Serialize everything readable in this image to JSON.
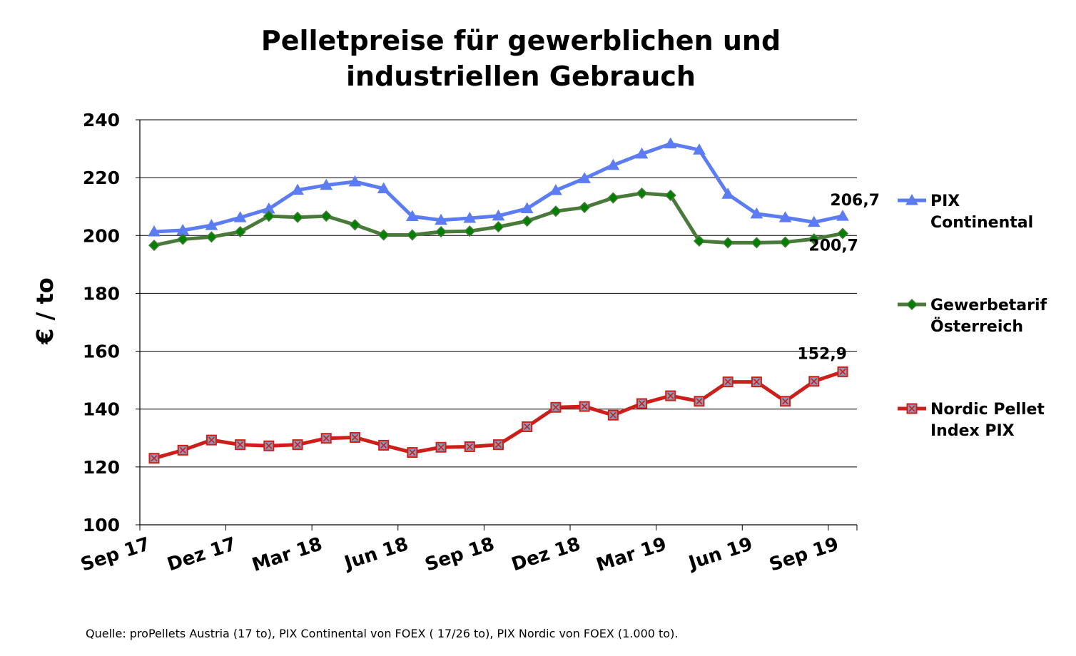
{
  "chart_data": {
    "type": "line",
    "title": [
      "Pelletpreise für gewerblichen und",
      "industriellen Gebrauch"
    ],
    "ylabel": "€ / to",
    "xlabel": "",
    "ylim": [
      100,
      240
    ],
    "yticks": [
      "100",
      "120",
      "140",
      "160",
      "180",
      "200",
      "220",
      "240"
    ],
    "grid": true,
    "legend_position": "right",
    "x_tick_labels": [
      {
        "index": 0,
        "label": "Sep 17"
      },
      {
        "index": 3,
        "label": "Dez 17"
      },
      {
        "index": 6,
        "label": "Mar 18"
      },
      {
        "index": 9,
        "label": "Jun 18"
      },
      {
        "index": 12,
        "label": "Sep 18"
      },
      {
        "index": 15,
        "label": "Dez 18"
      },
      {
        "index": 18,
        "label": "Mar 19"
      },
      {
        "index": 21,
        "label": "Jun 19"
      },
      {
        "index": 24,
        "label": "Sep 19"
      }
    ],
    "series": [
      {
        "name": [
          "PIX",
          "Continental"
        ],
        "color": "#5b7cf2",
        "marker": "triangle",
        "values": [
          201.3,
          201.8,
          203.5,
          206.2,
          209.2,
          215.7,
          217.4,
          218.6,
          216.2,
          206.6,
          205.3,
          206.0,
          206.8,
          209.3,
          215.6,
          219.7,
          224.3,
          228.2,
          231.7,
          229.6,
          214.3,
          207.5,
          206.2,
          204.6,
          206.7
        ],
        "end_label": "206,7"
      },
      {
        "name": [
          "Gewerbetarif",
          "Österreich"
        ],
        "color": "#4a7a3a",
        "marker_fill": "#008000",
        "marker": "diamond",
        "values": [
          196.6,
          198.7,
          199.5,
          201.3,
          206.7,
          206.3,
          206.7,
          203.7,
          200.2,
          200.2,
          201.3,
          201.5,
          203.0,
          205.0,
          208.4,
          209.7,
          213.0,
          214.6,
          213.9,
          198.1,
          197.5,
          197.5,
          197.7,
          198.8,
          200.7
        ],
        "end_label": "200,7"
      },
      {
        "name": [
          "Nordic Pellet",
          "Index PIX"
        ],
        "color": "#cc1f1a",
        "marker_fill": "#8a9ab8",
        "marker": "square-x",
        "values": [
          123.0,
          125.8,
          129.3,
          127.7,
          127.3,
          127.7,
          129.9,
          130.2,
          127.5,
          125.0,
          126.8,
          127.0,
          127.7,
          133.9,
          140.6,
          140.9,
          137.9,
          141.9,
          144.6,
          142.7,
          149.4,
          149.4,
          142.7,
          149.6,
          152.9
        ],
        "end_label": "152,9"
      }
    ]
  },
  "footer": {
    "source": "Quelle: proPellets Austria (17 to), PIX Continental von FOEX ( 17/26 to), PIX Nordic von FOEX (1.000 to)."
  }
}
